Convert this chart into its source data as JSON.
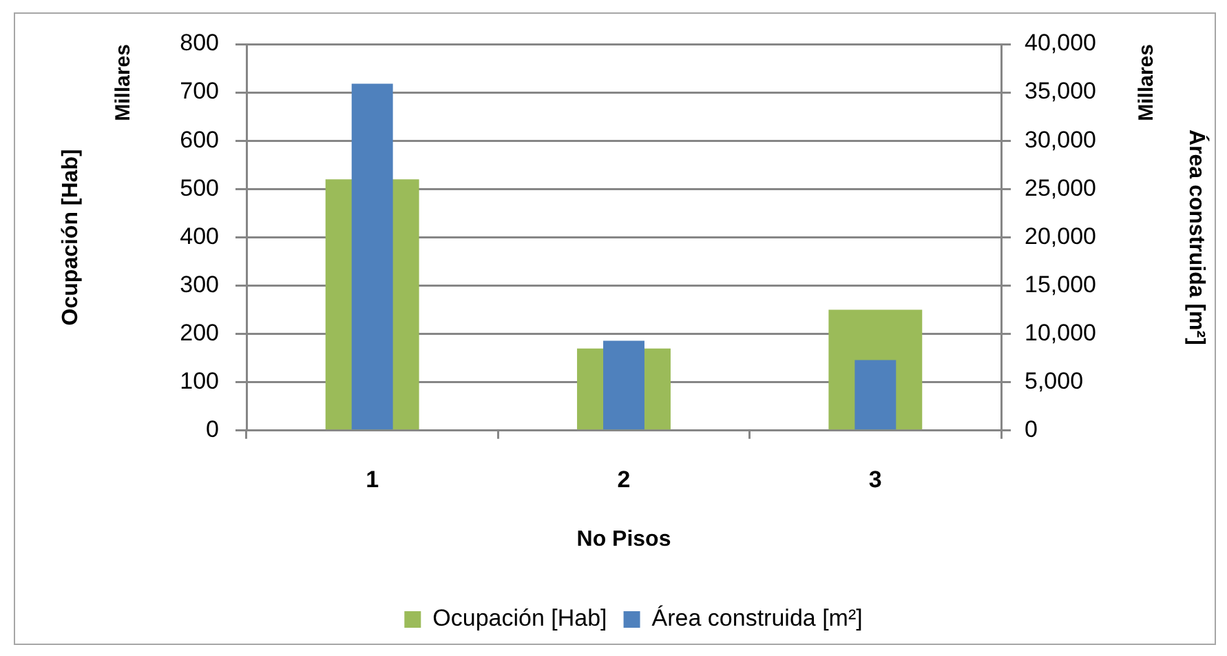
{
  "chart_data": {
    "type": "bar",
    "xlabel": "No Pisos",
    "ylabel": "Ocupación [Hab]",
    "y2label": "Área construida [m²]",
    "annotations": [
      "Millares",
      "Millares"
    ],
    "categories": [
      "1",
      "2",
      "3"
    ],
    "series": [
      {
        "name": "Ocupación [Hab]",
        "color": "#9bbb59",
        "values": [
          520,
          170,
          250
        ]
      },
      {
        "name": "Área construida [m²]",
        "color": "#4f81bd",
        "values": [
          35900,
          9300,
          7300
        ],
        "axis": "y2"
      }
    ],
    "ylim": [
      0,
      800
    ],
    "yticks": [
      0,
      100,
      200,
      300,
      400,
      500,
      600,
      700,
      800
    ],
    "y2lim": [
      0,
      40000
    ],
    "y2ticks": [
      0,
      {
        "value": 5000,
        "label": "5,000"
      },
      {
        "value": 10000,
        "label": "10,000"
      },
      {
        "value": 15000,
        "label": "15,000"
      },
      {
        "value": 20000,
        "label": "20,000"
      },
      {
        "value": 25000,
        "label": "25,000"
      },
      {
        "value": 30000,
        "label": "30,000"
      },
      {
        "value": 35000,
        "label": "35,000"
      },
      {
        "value": 40000,
        "label": "40,000"
      }
    ],
    "grid": "y",
    "legend": "bottom"
  }
}
